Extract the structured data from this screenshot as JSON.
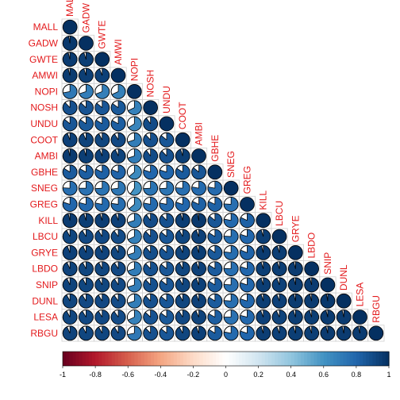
{
  "chart_data": {
    "type": "heatmap",
    "variables": [
      "MALL",
      "GADW",
      "GWTE",
      "AMWI",
      "NOPI",
      "NOSH",
      "UNDU",
      "COOT",
      "AMBI",
      "GBHE",
      "SNEG",
      "GREG",
      "KILL",
      "LBCU",
      "GRYE",
      "LBDO",
      "SNIP",
      "DUNL",
      "LESA",
      "RBGU"
    ],
    "correlation_matrix": [
      [
        1
      ],
      [
        0.97,
        1
      ],
      [
        0.96,
        0.95,
        1
      ],
      [
        0.96,
        0.95,
        0.94,
        1
      ],
      [
        0.72,
        0.7,
        0.69,
        0.68,
        1
      ],
      [
        0.88,
        0.87,
        0.86,
        0.85,
        0.68,
        1
      ],
      [
        0.86,
        0.85,
        0.84,
        0.83,
        0.66,
        0.9,
        1
      ],
      [
        0.94,
        0.93,
        0.92,
        0.91,
        0.7,
        0.88,
        0.86,
        1
      ],
      [
        0.96,
        0.95,
        0.94,
        0.93,
        0.7,
        0.9,
        0.88,
        0.95,
        1
      ],
      [
        0.84,
        0.83,
        0.82,
        0.81,
        0.64,
        0.8,
        0.8,
        0.84,
        0.86,
        1
      ],
      [
        0.76,
        0.75,
        0.74,
        0.73,
        0.6,
        0.74,
        0.74,
        0.76,
        0.78,
        0.78,
        1
      ],
      [
        0.8,
        0.79,
        0.78,
        0.77,
        0.64,
        0.78,
        0.78,
        0.8,
        0.82,
        0.82,
        0.76,
        1
      ],
      [
        0.96,
        0.95,
        0.95,
        0.94,
        0.7,
        0.9,
        0.88,
        0.95,
        0.97,
        0.86,
        0.78,
        0.82,
        1
      ],
      [
        0.92,
        0.91,
        0.91,
        0.9,
        0.68,
        0.88,
        0.86,
        0.92,
        0.94,
        0.84,
        0.76,
        0.8,
        0.95,
        1
      ],
      [
        0.94,
        0.93,
        0.93,
        0.92,
        0.7,
        0.89,
        0.87,
        0.93,
        0.95,
        0.85,
        0.77,
        0.81,
        0.96,
        0.95,
        1
      ],
      [
        0.93,
        0.92,
        0.92,
        0.91,
        0.7,
        0.88,
        0.86,
        0.92,
        0.94,
        0.84,
        0.76,
        0.8,
        0.95,
        0.95,
        0.96,
        1
      ],
      [
        0.93,
        0.92,
        0.92,
        0.91,
        0.7,
        0.88,
        0.86,
        0.92,
        0.94,
        0.84,
        0.76,
        0.8,
        0.95,
        0.94,
        0.96,
        0.96,
        1
      ],
      [
        0.92,
        0.91,
        0.91,
        0.9,
        0.7,
        0.88,
        0.86,
        0.92,
        0.94,
        0.84,
        0.76,
        0.8,
        0.95,
        0.94,
        0.96,
        0.96,
        0.97,
        1
      ],
      [
        0.92,
        0.91,
        0.91,
        0.9,
        0.68,
        0.87,
        0.85,
        0.91,
        0.93,
        0.83,
        0.75,
        0.79,
        0.94,
        0.93,
        0.95,
        0.95,
        0.96,
        0.96,
        1
      ],
      [
        0.93,
        0.92,
        0.92,
        0.91,
        0.72,
        0.88,
        0.86,
        0.92,
        0.94,
        0.84,
        0.78,
        0.8,
        0.95,
        0.94,
        0.95,
        0.95,
        0.96,
        0.96,
        0.96,
        1
      ]
    ],
    "colorbar": {
      "ticks": [
        "-1",
        "-0.8",
        "-0.6",
        "-0.4",
        "-0.2",
        "0",
        "0.2",
        "0.4",
        "0.6",
        "0.8",
        "1"
      ],
      "range": [
        -1,
        1
      ],
      "colors": [
        "#67001f",
        "#b2182b",
        "#d6604d",
        "#f4a582",
        "#fddbc7",
        "#ffffff",
        "#d1e5f0",
        "#92c5de",
        "#4393c3",
        "#2166ac",
        "#053061"
      ]
    },
    "method": "pie",
    "shape": "lower-triangle",
    "label_color": "#e31a1c"
  }
}
